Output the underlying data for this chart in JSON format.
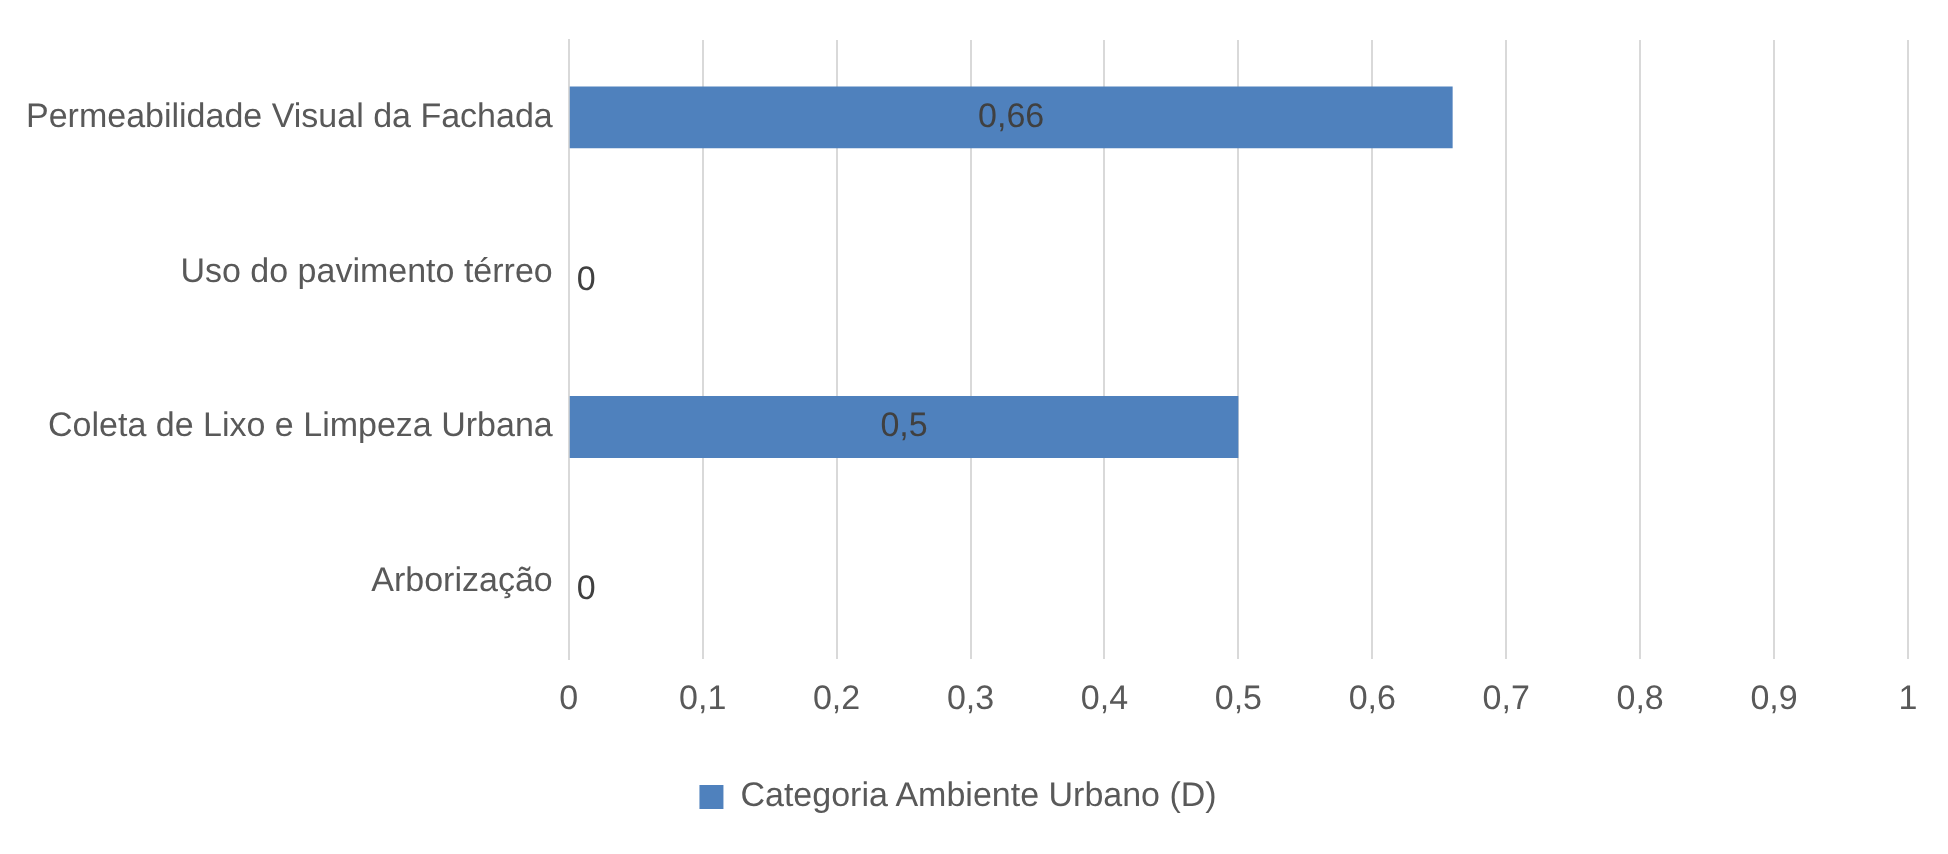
{
  "chart_data": {
    "type": "bar",
    "orientation": "horizontal",
    "categories": [
      "Permeabilidade Visual da Fachada",
      "Uso do pavimento térreo",
      "Coleta de Lixo e Limpeza Urbana",
      "Arborização"
    ],
    "series": [
      {
        "name": "Categoria Ambiente Urbano (D)",
        "color": "#4f81bd",
        "values": [
          0.66,
          0,
          0.5,
          0
        ],
        "value_labels": [
          "0,66",
          "0",
          "0,5",
          "0"
        ]
      }
    ],
    "xlim": [
      0,
      1
    ],
    "xticks": [
      0,
      {
        "value": 0.1,
        "label": "0,1"
      },
      {
        "value": 0.2,
        "label": "0,2"
      },
      {
        "value": 0.3,
        "label": "0,3"
      },
      {
        "value": 0.4,
        "label": "0,4"
      },
      {
        "value": 0.5,
        "label": "0,5"
      },
      {
        "value": 0.6,
        "label": "0,6"
      },
      {
        "value": 0.7,
        "label": "0,7"
      },
      {
        "value": 0.8,
        "label": "0,8"
      },
      {
        "value": 0.9,
        "label": "0,9"
      },
      1
    ],
    "grid": "x",
    "legend": "bottom"
  }
}
